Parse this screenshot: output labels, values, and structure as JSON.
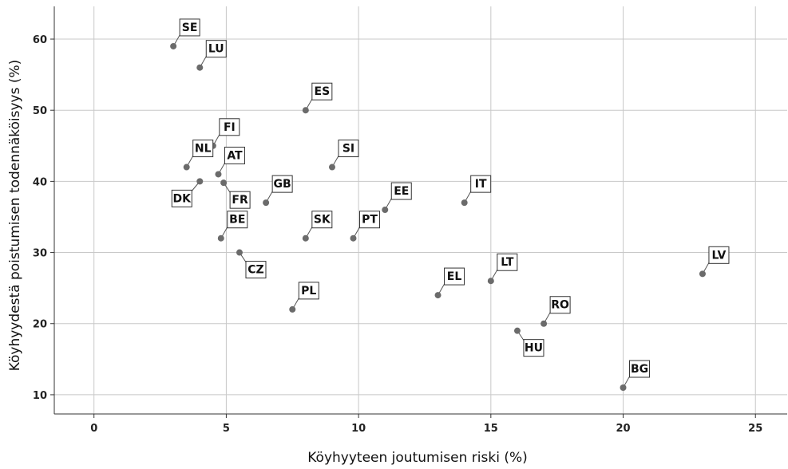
{
  "chart_data": {
    "type": "scatter",
    "title": "",
    "xlabel": "Köyhyyteen joutumisen riski (%)",
    "ylabel": "Köyhyydestä poistumisen todennäköisyys (%)",
    "xlim": [
      -1.5,
      26.2
    ],
    "ylim": [
      7.3,
      64.6
    ],
    "xticks": [
      0,
      5,
      10,
      15,
      20,
      25
    ],
    "yticks": [
      10,
      20,
      30,
      40,
      50,
      60
    ],
    "xtick_labels": [
      "0",
      "5",
      "10",
      "15",
      "20",
      "25"
    ],
    "ytick_labels": [
      "10",
      "20",
      "30",
      "40",
      "50",
      "60"
    ],
    "grid": true,
    "point_color": "#6b6b6b",
    "points": [
      {
        "label": "SE",
        "x": 3.0,
        "y": 59,
        "dir": "ne"
      },
      {
        "label": "LU",
        "x": 4.0,
        "y": 56,
        "dir": "ne"
      },
      {
        "label": "ES",
        "x": 8.0,
        "y": 50,
        "dir": "ne"
      },
      {
        "label": "FI",
        "x": 4.5,
        "y": 45,
        "dir": "ne"
      },
      {
        "label": "NL",
        "x": 3.5,
        "y": 42,
        "dir": "ne"
      },
      {
        "label": "AT",
        "x": 4.7,
        "y": 41,
        "dir": "ne"
      },
      {
        "label": "SI",
        "x": 9.0,
        "y": 42,
        "dir": "ne"
      },
      {
        "label": "DK",
        "x": 4.0,
        "y": 40,
        "dir": "sw"
      },
      {
        "label": "FR",
        "x": 4.9,
        "y": 39.8,
        "dir": "se"
      },
      {
        "label": "GB",
        "x": 6.5,
        "y": 37,
        "dir": "ne"
      },
      {
        "label": "EE",
        "x": 11.0,
        "y": 36,
        "dir": "ne"
      },
      {
        "label": "IT",
        "x": 14.0,
        "y": 37,
        "dir": "ne"
      },
      {
        "label": "PT",
        "x": 9.8,
        "y": 32,
        "dir": "ne"
      },
      {
        "label": "BE",
        "x": 4.8,
        "y": 32,
        "dir": "ne"
      },
      {
        "label": "SK",
        "x": 8.0,
        "y": 32,
        "dir": "ne"
      },
      {
        "label": "CZ",
        "x": 5.5,
        "y": 30,
        "dir": "se"
      },
      {
        "label": "LT",
        "x": 15.0,
        "y": 26,
        "dir": "ne"
      },
      {
        "label": "LV",
        "x": 23.0,
        "y": 27,
        "dir": "ne"
      },
      {
        "label": "EL",
        "x": 13.0,
        "y": 24,
        "dir": "ne"
      },
      {
        "label": "PL",
        "x": 7.5,
        "y": 22,
        "dir": "ne"
      },
      {
        "label": "RO",
        "x": 17.0,
        "y": 20,
        "dir": "ne"
      },
      {
        "label": "HU",
        "x": 16.0,
        "y": 19,
        "dir": "se"
      },
      {
        "label": "BG",
        "x": 20.0,
        "y": 11,
        "dir": "ne"
      }
    ]
  }
}
